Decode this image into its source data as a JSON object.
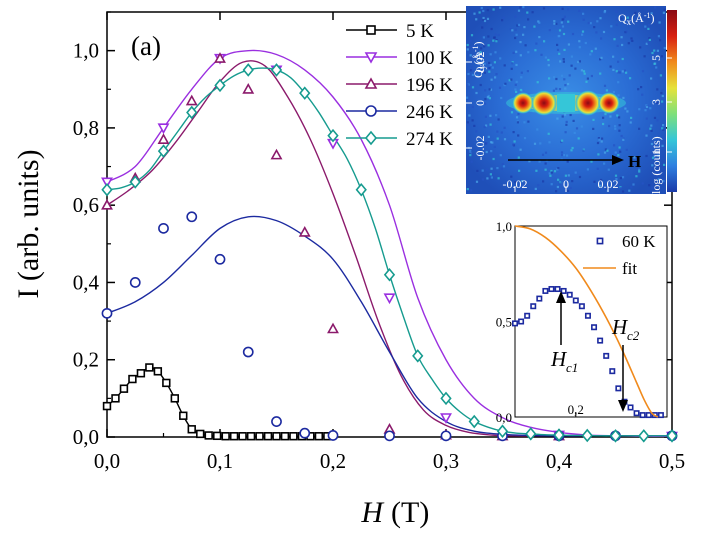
{
  "chart_data": [
    {
      "type": "line",
      "panel_label": "(a)",
      "xlabel": "H",
      "xlabel_unit": "(T)",
      "ylabel": "I (arb. units)",
      "xlim": [
        0,
        0.5
      ],
      "ylim": [
        0,
        1.1
      ],
      "x_ticks": [
        "0,0",
        "0,1",
        "0,2",
        "0,3",
        "0,4",
        "0,5"
      ],
      "y_ticks": [
        "0,0",
        "0,2",
        "0,4",
        "0,6",
        "0,8",
        "1,0"
      ],
      "x_tick_values": [
        0,
        0.1,
        0.2,
        0.3,
        0.4,
        0.5
      ],
      "y_tick_values": [
        0,
        0.2,
        0.4,
        0.6,
        0.8,
        1.0
      ],
      "legend_position": "top-center",
      "grid": false,
      "series": [
        {
          "name": "5 K",
          "color": "#000000",
          "marker": "square",
          "x": [
            0.0,
            0.0075,
            0.015,
            0.0225,
            0.03,
            0.0375,
            0.045,
            0.0525,
            0.06,
            0.0675,
            0.075,
            0.0825,
            0.09,
            0.0975,
            0.105,
            0.1125,
            0.12,
            0.1275,
            0.135,
            0.1425,
            0.15,
            0.1575,
            0.165,
            0.1725,
            0.18,
            0.1875,
            0.195
          ],
          "y": [
            0.08,
            0.1,
            0.125,
            0.15,
            0.165,
            0.18,
            0.17,
            0.14,
            0.1,
            0.055,
            0.02,
            0.008,
            0.004,
            0.003,
            0.002,
            0.002,
            0.002,
            0.002,
            0.002,
            0.002,
            0.002,
            0.002,
            0.002,
            0.002,
            0.002,
            0.002,
            0.002
          ]
        },
        {
          "name": "100 K",
          "color": "#9a2fe0",
          "marker": "triangle-down",
          "x": [
            0.0,
            0.05,
            0.1,
            0.15,
            0.2,
            0.25,
            0.3,
            0.4,
            0.5
          ],
          "y": [
            0.66,
            0.8,
            0.98,
            0.95,
            0.76,
            0.36,
            0.05,
            0.005,
            0.002
          ],
          "smooth_y": [
            0.66,
            0.7,
            0.8,
            0.9,
            0.98,
            1.0,
            0.99,
            0.95,
            0.88,
            0.77,
            0.6,
            0.36,
            0.2,
            0.1,
            0.05,
            0.025,
            0.012,
            0.005,
            0.003,
            0.002,
            0.002
          ]
        },
        {
          "name": "196 K",
          "color": "#8b1a6b",
          "marker": "triangle-up",
          "x": [
            0.0,
            0.025,
            0.05,
            0.075,
            0.1,
            0.125,
            0.15,
            0.175,
            0.2,
            0.25,
            0.3,
            0.35,
            0.4
          ],
          "y": [
            0.6,
            0.67,
            0.77,
            0.87,
            0.98,
            0.9,
            0.73,
            0.53,
            0.28,
            0.02,
            0.005,
            0.003,
            0.003
          ],
          "smooth_y": [
            0.6,
            0.64,
            0.69,
            0.76,
            0.84,
            0.92,
            0.97,
            0.96,
            0.88,
            0.77,
            0.63,
            0.47,
            0.3,
            0.16,
            0.07,
            0.03,
            0.012,
            0.005,
            0.003,
            0.003,
            0.003
          ]
        },
        {
          "name": "246 K",
          "color": "#1c2aa0",
          "marker": "circle",
          "x": [
            0.0,
            0.025,
            0.05,
            0.075,
            0.1,
            0.125,
            0.15,
            0.175,
            0.2,
            0.25,
            0.3,
            0.35,
            0.4,
            0.45,
            0.5
          ],
          "y": [
            0.32,
            0.4,
            0.54,
            0.57,
            0.46,
            0.22,
            0.04,
            0.01,
            0.004,
            0.003,
            0.003,
            0.003,
            0.003,
            0.003,
            0.003
          ],
          "smooth_y": [
            0.32,
            0.35,
            0.4,
            0.47,
            0.54,
            0.57,
            0.56,
            0.52,
            0.46,
            0.35,
            0.22,
            0.1,
            0.04,
            0.015,
            0.007,
            0.004,
            0.003,
            0.003,
            0.003,
            0.003,
            0.003
          ]
        },
        {
          "name": "274 K",
          "color": "#169b8f",
          "marker": "diamond",
          "x": [
            0.0,
            0.025,
            0.05,
            0.075,
            0.1,
            0.125,
            0.15,
            0.175,
            0.2,
            0.225,
            0.25,
            0.275,
            0.3,
            0.325,
            0.35,
            0.375,
            0.4,
            0.425,
            0.45,
            0.475,
            0.5
          ],
          "y": [
            0.64,
            0.66,
            0.74,
            0.84,
            0.91,
            0.95,
            0.95,
            0.89,
            0.78,
            0.64,
            0.42,
            0.21,
            0.1,
            0.04,
            0.015,
            0.008,
            0.005,
            0.004,
            0.003,
            0.003,
            0.003
          ],
          "smooth_y": [
            0.64,
            0.645,
            0.66,
            0.69,
            0.74,
            0.79,
            0.84,
            0.88,
            0.91,
            0.935,
            0.95,
            0.955,
            0.95,
            0.93,
            0.89,
            0.84,
            0.78,
            0.72,
            0.64,
            0.54,
            0.42,
            0.31,
            0.21,
            0.15,
            0.1,
            0.065,
            0.04,
            0.025,
            0.015,
            0.01,
            0.008,
            0.006,
            0.005,
            0.004,
            0.004,
            0.003,
            0.003,
            0.003,
            0.003,
            0.003,
            0.003
          ]
        }
      ]
    },
    {
      "type": "line",
      "role": "inset",
      "xlim": [
        0,
        0.5
      ],
      "ylim": [
        0,
        1.0
      ],
      "x_ticks": [
        "0,2"
      ],
      "x_tick_values": [
        0.2
      ],
      "y_ticks": [
        "0,0",
        "0,5",
        "1,0"
      ],
      "y_tick_values": [
        0,
        0.5,
        1.0
      ],
      "annotations": [
        {
          "label": "H",
          "sub": "c1"
        },
        {
          "label": "H",
          "sub": "c2"
        }
      ],
      "series": [
        {
          "name": "60 K",
          "color": "#1c2aa0",
          "marker": "square-open",
          "x": [
            0.0,
            0.02,
            0.04,
            0.06,
            0.08,
            0.1,
            0.12,
            0.14,
            0.16,
            0.18,
            0.2,
            0.22,
            0.24,
            0.26,
            0.28,
            0.3,
            0.32,
            0.34,
            0.36,
            0.38,
            0.4,
            0.42,
            0.44,
            0.46,
            0.48
          ],
          "y": [
            0.49,
            0.5,
            0.53,
            0.58,
            0.62,
            0.66,
            0.67,
            0.67,
            0.66,
            0.64,
            0.61,
            0.58,
            0.53,
            0.47,
            0.4,
            0.32,
            0.24,
            0.15,
            0.08,
            0.05,
            0.02,
            0.01,
            0.01,
            0.01,
            0.01
          ]
        },
        {
          "name": "fit",
          "color": "#f08a1c",
          "marker": "none",
          "x": [
            0.0,
            0.05,
            0.1,
            0.15,
            0.2,
            0.25,
            0.3,
            0.35,
            0.4,
            0.425,
            0.45,
            0.47
          ],
          "y": [
            1.0,
            0.985,
            0.94,
            0.87,
            0.78,
            0.66,
            0.52,
            0.36,
            0.18,
            0.09,
            0.02,
            0.0
          ]
        }
      ]
    }
  ],
  "detector_image": {
    "qx_label": "Q",
    "qx_sub": "x",
    "qx_unit": "(Å",
    "qx_unit_sup": "-1",
    "qx_close": ")",
    "qy_label": "Q",
    "qy_sub": "y",
    "qy_unit": "(Å",
    "qy_unit_sup": "-1",
    "qy_close": ")",
    "arrow_label": "H",
    "x_ticks": [
      "-0.02",
      "0",
      "0.02"
    ],
    "y_ticks": [
      "0.02",
      "0",
      "-0.02"
    ],
    "colorbar_label": "log (counts)",
    "colorbar_ticks": [
      "5",
      "3",
      "1"
    ],
    "colormap": [
      "#1a3aa8",
      "#2f7fe0",
      "#35c6d8",
      "#7ee07a",
      "#e6e23a",
      "#f08a1c",
      "#d82010",
      "#8a0a14"
    ]
  }
}
